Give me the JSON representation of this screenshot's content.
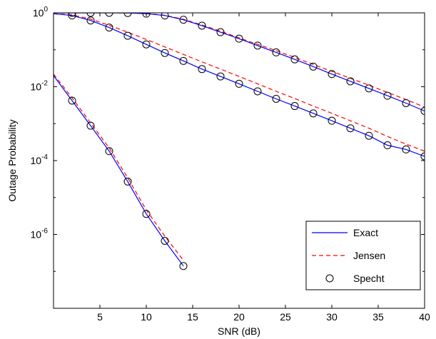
{
  "chart_data": {
    "type": "line",
    "xlabel": "SNR (dB)",
    "ylabel": "Outage Probability",
    "xlim": [
      0,
      40
    ],
    "ylim": [
      1e-08,
      1
    ],
    "yscale": "log",
    "xticks": [
      5,
      10,
      15,
      20,
      25,
      30,
      35,
      40
    ],
    "xtick_labels": [
      "5",
      "10",
      "15",
      "20",
      "25",
      "30",
      "35",
      "40"
    ],
    "yticks": [
      {
        "value": 1,
        "base": "10",
        "exp": "0"
      },
      {
        "value": 0.01,
        "base": "10",
        "exp": "-2"
      },
      {
        "value": 0.0001,
        "base": "10",
        "exp": "-4"
      },
      {
        "value": 1e-06,
        "base": "10",
        "exp": "-6"
      }
    ],
    "grid": false,
    "legend_position": "bottom-right",
    "legend": [
      {
        "label": "Exact",
        "style": "solid-line",
        "color": "#0000ff"
      },
      {
        "label": "Jensen",
        "style": "dashed-line",
        "color": "#ff0000"
      },
      {
        "label": "Specht",
        "style": "circle-marker",
        "color": "#000000"
      }
    ],
    "curves": [
      {
        "exact": [
          [
            0,
            1.0
          ],
          [
            2,
            1.0
          ],
          [
            4,
            1.0
          ],
          [
            6,
            1.0
          ],
          [
            8,
            0.99
          ],
          [
            10,
            0.95
          ],
          [
            12,
            0.85
          ],
          [
            14,
            0.65
          ],
          [
            16,
            0.45
          ],
          [
            18,
            0.3
          ],
          [
            20,
            0.2
          ],
          [
            22,
            0.13
          ],
          [
            24,
            0.085
          ],
          [
            26,
            0.055
          ],
          [
            28,
            0.035
          ],
          [
            30,
            0.022
          ],
          [
            32,
            0.014
          ],
          [
            34,
            0.009
          ],
          [
            36,
            0.0057
          ],
          [
            38,
            0.0036
          ],
          [
            40,
            0.0022
          ]
        ],
        "jensen": [
          [
            0,
            1.0
          ],
          [
            2,
            1.0
          ],
          [
            4,
            1.0
          ],
          [
            6,
            1.0
          ],
          [
            8,
            0.995
          ],
          [
            10,
            0.96
          ],
          [
            12,
            0.86
          ],
          [
            14,
            0.67
          ],
          [
            16,
            0.47
          ],
          [
            18,
            0.32
          ],
          [
            20,
            0.21
          ],
          [
            22,
            0.14
          ],
          [
            24,
            0.095
          ],
          [
            26,
            0.062
          ],
          [
            28,
            0.04
          ],
          [
            30,
            0.026
          ],
          [
            32,
            0.017
          ],
          [
            34,
            0.011
          ],
          [
            36,
            0.007
          ],
          [
            38,
            0.0045
          ],
          [
            40,
            0.0028
          ]
        ],
        "specht": [
          [
            2,
            1.0
          ],
          [
            4,
            1.0
          ],
          [
            6,
            1.0
          ],
          [
            8,
            0.99
          ],
          [
            10,
            0.95
          ],
          [
            12,
            0.85
          ],
          [
            14,
            0.65
          ],
          [
            16,
            0.45
          ],
          [
            18,
            0.3
          ],
          [
            20,
            0.2
          ],
          [
            22,
            0.13
          ],
          [
            24,
            0.085
          ],
          [
            26,
            0.055
          ],
          [
            28,
            0.035
          ],
          [
            30,
            0.022
          ],
          [
            32,
            0.014
          ],
          [
            34,
            0.009
          ],
          [
            36,
            0.0057
          ],
          [
            38,
            0.0036
          ],
          [
            40,
            0.0022
          ]
        ]
      },
      {
        "exact": [
          [
            0,
            0.95
          ],
          [
            2,
            0.85
          ],
          [
            4,
            0.62
          ],
          [
            6,
            0.4
          ],
          [
            8,
            0.24
          ],
          [
            10,
            0.14
          ],
          [
            12,
            0.082
          ],
          [
            14,
            0.05
          ],
          [
            16,
            0.03
          ],
          [
            18,
            0.019
          ],
          [
            20,
            0.012
          ],
          [
            22,
            0.0075
          ],
          [
            24,
            0.0047
          ],
          [
            26,
            0.003
          ],
          [
            28,
            0.0019
          ],
          [
            30,
            0.0012
          ],
          [
            32,
            0.00075
          ],
          [
            34,
            0.00047
          ],
          [
            36,
            0.00026
          ],
          [
            38,
            0.0002
          ],
          [
            40,
            0.00013
          ]
        ],
        "jensen": [
          [
            0,
            0.95
          ],
          [
            2,
            0.88
          ],
          [
            4,
            0.68
          ],
          [
            6,
            0.46
          ],
          [
            8,
            0.3
          ],
          [
            10,
            0.19
          ],
          [
            12,
            0.12
          ],
          [
            14,
            0.075
          ],
          [
            16,
            0.047
          ],
          [
            18,
            0.03
          ],
          [
            20,
            0.019
          ],
          [
            22,
            0.012
          ],
          [
            24,
            0.0075
          ],
          [
            26,
            0.0048
          ],
          [
            28,
            0.003
          ],
          [
            30,
            0.0019
          ],
          [
            32,
            0.0012
          ],
          [
            34,
            0.00075
          ],
          [
            36,
            0.00045
          ],
          [
            38,
            0.00028
          ],
          [
            40,
            0.00018
          ]
        ],
        "specht": [
          [
            2,
            0.85
          ],
          [
            4,
            0.62
          ],
          [
            6,
            0.4
          ],
          [
            8,
            0.24
          ],
          [
            10,
            0.14
          ],
          [
            12,
            0.082
          ],
          [
            14,
            0.05
          ],
          [
            16,
            0.03
          ],
          [
            18,
            0.019
          ],
          [
            20,
            0.012
          ],
          [
            22,
            0.0075
          ],
          [
            24,
            0.0047
          ],
          [
            26,
            0.003
          ],
          [
            28,
            0.0019
          ],
          [
            30,
            0.0012
          ],
          [
            32,
            0.00075
          ],
          [
            34,
            0.00047
          ],
          [
            36,
            0.00026
          ],
          [
            38,
            0.0002
          ],
          [
            40,
            0.00013
          ]
        ]
      },
      {
        "exact": [
          [
            0,
            0.02
          ],
          [
            2,
            0.0042
          ],
          [
            4,
            0.00088
          ],
          [
            6,
            0.00018
          ],
          [
            8,
            2.7e-05
          ],
          [
            10,
            3.6e-06
          ],
          [
            12,
            6.7e-07
          ],
          [
            14,
            1.4e-07
          ]
        ],
        "jensen": [
          [
            0,
            0.022
          ],
          [
            2,
            0.005
          ],
          [
            4,
            0.00105
          ],
          [
            6,
            0.00022
          ],
          [
            8,
            3.4e-05
          ],
          [
            10,
            4.6e-06
          ],
          [
            12,
            9e-07
          ],
          [
            14,
            2e-07
          ]
        ],
        "specht": [
          [
            2,
            0.0042
          ],
          [
            4,
            0.00088
          ],
          [
            6,
            0.00018
          ],
          [
            8,
            2.7e-05
          ],
          [
            10,
            3.6e-06
          ],
          [
            12,
            6.7e-07
          ],
          [
            14,
            1.4e-07
          ]
        ]
      }
    ]
  }
}
